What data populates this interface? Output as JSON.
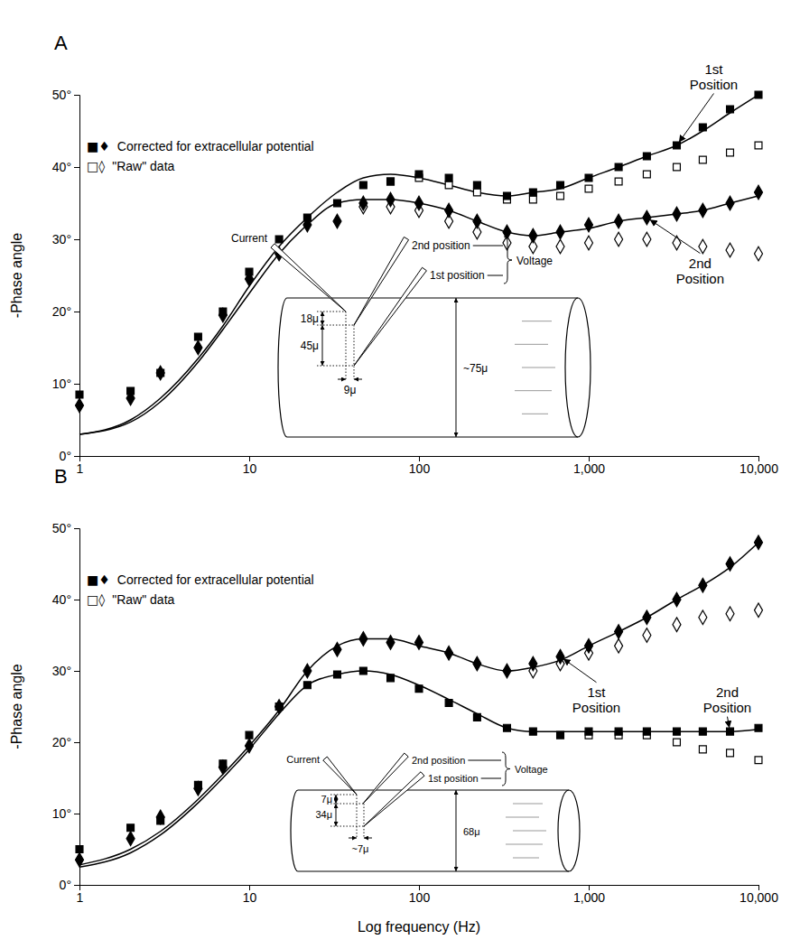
{
  "chart_data": [
    {
      "type": "line",
      "panel": "A",
      "x": [
        1,
        2,
        3,
        5,
        7,
        10,
        15,
        22,
        33,
        47,
        68,
        100,
        150,
        220,
        330,
        470,
        680,
        1000,
        1500,
        2200,
        3300,
        4700,
        6800,
        10000
      ],
      "series": [
        {
          "type": "scatter",
          "marker": "square",
          "color": "#000000",
          "values": [
            8.5,
            9,
            11.5,
            16.5,
            20,
            25.5,
            30,
            33,
            35,
            37.5,
            38,
            39,
            38.5,
            37.5,
            36,
            36.5,
            37.5,
            38.5,
            40,
            41.5,
            43,
            45.5,
            48,
            50
          ]
        },
        {
          "type": "scatter",
          "marker": "open-square",
          "color": "#000000",
          "values": [
            null,
            null,
            null,
            null,
            null,
            null,
            null,
            null,
            null,
            null,
            38,
            38.5,
            37.5,
            36.5,
            35.5,
            35.5,
            36,
            37,
            38,
            39,
            40,
            41,
            42,
            43
          ]
        },
        {
          "type": "scatter",
          "marker": "diamond",
          "color": "#000000",
          "values": [
            7,
            8,
            11.5,
            15,
            19.5,
            24.5,
            28,
            32,
            32.5,
            35,
            35.5,
            35,
            34,
            32.5,
            31,
            30.5,
            31,
            32,
            32.5,
            33,
            33.5,
            34,
            35,
            36.5
          ]
        },
        {
          "type": "scatter",
          "marker": "open-diamond",
          "color": "#000000",
          "values": [
            null,
            null,
            null,
            null,
            null,
            null,
            null,
            null,
            null,
            34.5,
            34.5,
            34,
            32.5,
            31,
            29.5,
            29,
            29,
            29.5,
            30,
            30,
            29.5,
            29,
            28.5,
            28
          ]
        },
        {
          "type": "line",
          "line_style": "solid",
          "color": "#000000",
          "values": [
            3,
            5,
            8,
            13.5,
            18,
            23.5,
            29,
            33,
            36.5,
            38.5,
            39,
            38.5,
            37.5,
            36.5,
            36,
            36.5,
            37,
            38.5,
            40,
            41.5,
            43,
            45,
            47.5,
            50
          ]
        },
        {
          "type": "line",
          "line_style": "solid",
          "color": "#000000",
          "values": [
            3,
            4.7,
            7.5,
            13,
            17.5,
            22.5,
            28,
            32,
            35,
            35.5,
            35.5,
            35,
            34,
            32.5,
            31,
            30.5,
            31,
            31.5,
            32.5,
            33,
            33.5,
            34,
            35,
            36
          ]
        }
      ],
      "ylabel": "-Phase angle",
      "xlim": [
        1,
        10000
      ],
      "ylim": [
        0,
        50
      ],
      "log": "x",
      "xticks": [
        1,
        10,
        100,
        {
          "value": 1000,
          "label": "1,000"
        },
        {
          "value": 10000,
          "label": "10,000"
        }
      ],
      "yticks": [
        {
          "value": 0,
          "label": "0°"
        },
        {
          "value": 10,
          "label": "10°"
        },
        {
          "value": 20,
          "label": "20°"
        },
        {
          "value": 30,
          "label": "30°"
        },
        {
          "value": 40,
          "label": "40°"
        },
        {
          "value": 50,
          "label": "50°"
        }
      ],
      "legend": "top-left",
      "legend_entries": [
        {
          "symbols": "■♦",
          "text": "Corrected for extracellular potential"
        },
        {
          "symbols": "□◊",
          "text": "\"Raw\" data"
        }
      ],
      "annotations": [
        {
          "text": "1st Position",
          "x": 3300,
          "y": 43
        },
        {
          "text": "2nd Position",
          "x": 2200,
          "y": 33
        }
      ],
      "diagram": {
        "current": "Current",
        "second": "2nd position",
        "first": "1st position",
        "voltage": "Voltage",
        "gap_1": "18μ",
        "gap_2": "45μ",
        "offset": "9μ",
        "diameter": "~75μ"
      }
    },
    {
      "type": "line",
      "panel": "B",
      "x": [
        1,
        2,
        3,
        5,
        7,
        10,
        15,
        22,
        33,
        47,
        68,
        100,
        150,
        220,
        330,
        470,
        680,
        1000,
        1500,
        2200,
        3300,
        4700,
        6800,
        10000
      ],
      "series": [
        {
          "type": "scatter",
          "marker": "diamond",
          "color": "#000000",
          "values": [
            3.5,
            6.5,
            9.5,
            13.5,
            16.5,
            19.5,
            25,
            30,
            33,
            34.5,
            34,
            34,
            32.5,
            31,
            30,
            31,
            32,
            33.5,
            35.5,
            37.5,
            40,
            42,
            45,
            48
          ]
        },
        {
          "type": "scatter",
          "marker": "open-diamond",
          "color": "#000000",
          "values": [
            null,
            null,
            null,
            null,
            null,
            null,
            null,
            null,
            null,
            null,
            null,
            null,
            null,
            null,
            null,
            30,
            31,
            32.5,
            33.5,
            35,
            36.5,
            37.5,
            38,
            38.5
          ]
        },
        {
          "type": "scatter",
          "marker": "square",
          "color": "#000000",
          "values": [
            5,
            8,
            9,
            14,
            17,
            21,
            25,
            28,
            29.5,
            30,
            29,
            27.5,
            25.5,
            23.5,
            22,
            21.5,
            21,
            21.5,
            21.5,
            21.5,
            21.5,
            21.5,
            21.5,
            22
          ]
        },
        {
          "type": "scatter",
          "marker": "open-square",
          "color": "#000000",
          "values": [
            null,
            null,
            null,
            null,
            null,
            null,
            null,
            null,
            null,
            null,
            null,
            null,
            null,
            null,
            null,
            null,
            null,
            21,
            21,
            21,
            20,
            19,
            18.5,
            17.5
          ]
        },
        {
          "type": "line",
          "line_style": "solid",
          "color": "#000000",
          "values": [
            2.8,
            5,
            7.5,
            12,
            15.5,
            19.5,
            24.5,
            30,
            33.5,
            34.5,
            34.5,
            33.5,
            32.5,
            31,
            30,
            30.5,
            31.5,
            33.5,
            35.5,
            37.5,
            40,
            42,
            44.5,
            48
          ]
        },
        {
          "type": "line",
          "line_style": "solid",
          "color": "#000000",
          "values": [
            2.5,
            4.5,
            7,
            11.5,
            15,
            19,
            24,
            28,
            29.5,
            30,
            29.5,
            28,
            26,
            24,
            22,
            21.5,
            21.5,
            21.5,
            21.5,
            21.5,
            21.5,
            21.5,
            21.5,
            21.8
          ]
        }
      ],
      "xlabel": "Log frequency (Hz)",
      "ylabel": "-Phase angle",
      "xlim": [
        1,
        10000
      ],
      "ylim": [
        0,
        50
      ],
      "log": "x",
      "xticks": [
        1,
        10,
        100,
        {
          "value": 1000,
          "label": "1,000"
        },
        {
          "value": 10000,
          "label": "10,000"
        }
      ],
      "yticks": [
        {
          "value": 0,
          "label": "0°"
        },
        {
          "value": 10,
          "label": "10°"
        },
        {
          "value": 20,
          "label": "20°"
        },
        {
          "value": 30,
          "label": "30°"
        },
        {
          "value": 40,
          "label": "40°"
        },
        {
          "value": 50,
          "label": "50°"
        }
      ],
      "legend": "top-left",
      "legend_entries": [
        {
          "symbols": "■♦",
          "text": "Corrected for extracellular potential"
        },
        {
          "symbols": "□◊",
          "text": "\"Raw\" data"
        }
      ],
      "annotations": [
        {
          "text": "1st Position",
          "x": 680,
          "y": 32
        },
        {
          "text": "2nd Position",
          "x": 6800,
          "y": 21.5
        }
      ],
      "diagram": {
        "current": "Current",
        "second": "2nd position",
        "first": "1st position",
        "voltage": "Voltage",
        "gap_1": "7μ",
        "gap_2": "34μ",
        "offset": "~7μ",
        "diameter": "68μ"
      }
    }
  ]
}
